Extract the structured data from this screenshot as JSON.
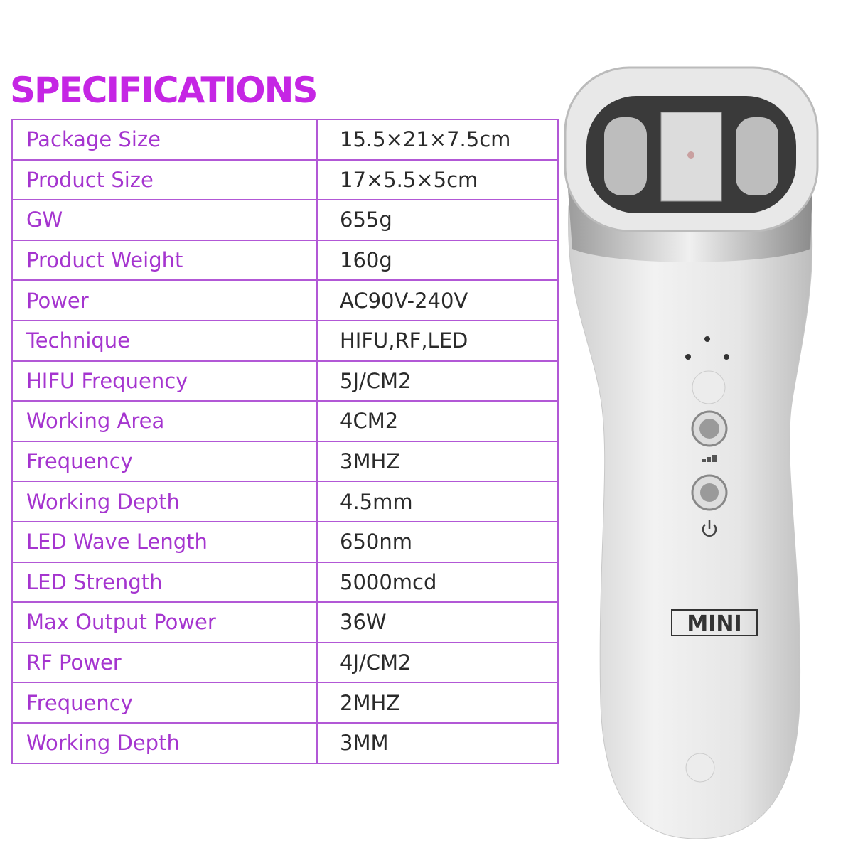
{
  "title": "SPECIFICATIONS",
  "specs": [
    {
      "label": "Package Size",
      "value": "15.5×21×7.5cm"
    },
    {
      "label": "Product Size",
      "value": "17×5.5×5cm"
    },
    {
      "label": "GW",
      "value": "655g"
    },
    {
      "label": "Product Weight",
      "value": "160g"
    },
    {
      "label": "Power",
      "value": "AC90V-240V"
    },
    {
      "label": "Technique",
      "value": "HIFU,RF,LED"
    },
    {
      "label": "HIFU Frequency",
      "value": "5J/CM2"
    },
    {
      "label": "Working Area",
      "value": "4CM2"
    },
    {
      "label": "Frequency",
      "value": "3MHZ"
    },
    {
      "label": "Working Depth",
      "value": "4.5mm"
    },
    {
      "label": "LED Wave Length",
      "value": "650nm"
    },
    {
      "label": "LED Strength",
      "value": "5000mcd"
    },
    {
      "label": "Max Output Power",
      "value": "36W"
    },
    {
      "label": "RF Power",
      "value": "4J/CM2"
    },
    {
      "label": "Frequency",
      "value": "2MHZ"
    },
    {
      "label": "Working Depth",
      "value": "3MM"
    }
  ],
  "device": {
    "logo": "MINI"
  },
  "colors": {
    "title": "#c526e4",
    "label": "#a535cf",
    "border": "#b258d6",
    "value": "#2a2a2a"
  }
}
